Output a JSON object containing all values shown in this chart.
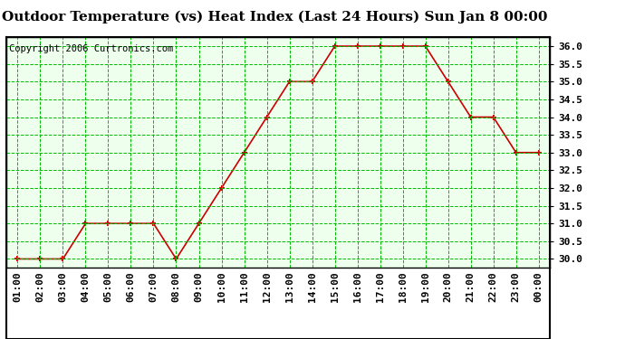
{
  "title": "Outdoor Temperature (vs) Heat Index (Last 24 Hours) Sun Jan 8 00:00",
  "copyright": "Copyright 2006 Curtronics.com",
  "x_labels": [
    "01:00",
    "02:00",
    "03:00",
    "04:00",
    "05:00",
    "06:00",
    "07:00",
    "08:00",
    "09:00",
    "10:00",
    "11:00",
    "12:00",
    "13:00",
    "14:00",
    "15:00",
    "16:00",
    "17:00",
    "18:00",
    "19:00",
    "20:00",
    "21:00",
    "22:00",
    "23:00",
    "00:00"
  ],
  "y_values": [
    30.0,
    30.0,
    30.0,
    31.0,
    31.0,
    31.0,
    31.0,
    30.0,
    31.0,
    32.0,
    33.0,
    34.0,
    35.0,
    35.0,
    36.0,
    36.0,
    36.0,
    36.0,
    36.0,
    35.0,
    34.0,
    34.0,
    33.0,
    33.0
  ],
  "line_color": "#cc0000",
  "marker_color": "#cc0000",
  "bg_color": "#ffffff",
  "plot_bg_color": "#eeffee",
  "grid_color": "#00bb00",
  "grid_style": "--",
  "ylim": [
    29.75,
    36.25
  ],
  "yticks": [
    30.0,
    30.5,
    31.0,
    31.5,
    32.0,
    32.5,
    33.0,
    33.5,
    34.0,
    34.5,
    35.0,
    35.5,
    36.0
  ],
  "title_fontsize": 11,
  "copyright_fontsize": 7.5,
  "tick_fontsize": 8,
  "border_color": "#000000"
}
